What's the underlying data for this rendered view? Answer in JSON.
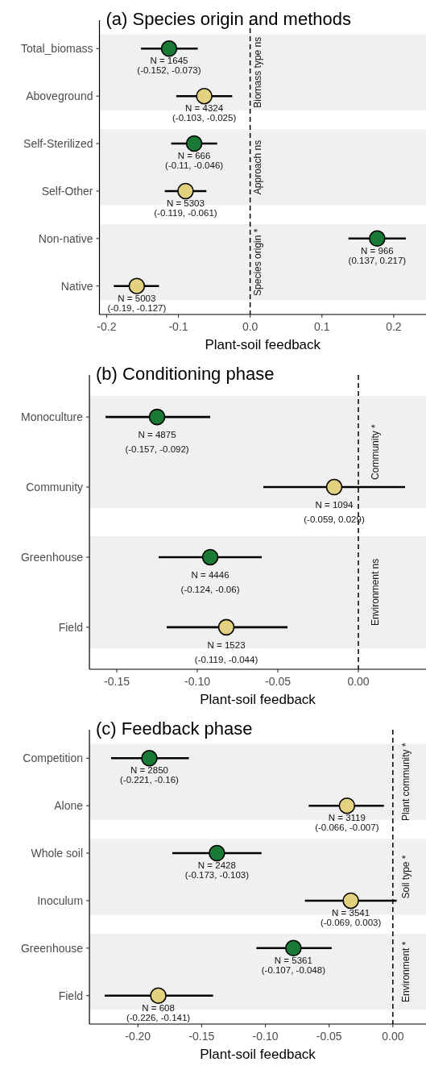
{
  "chart_data": [
    {
      "type": "scatter",
      "orientation": "horizontal",
      "title": "(a) Species origin and methods",
      "xlabel": "Plant-soil feedback",
      "marker": "circle",
      "categories": [
        "Total_biomass",
        "Aboveground",
        "Self-Sterilized",
        "Self-Other",
        "Non-native",
        "Native"
      ],
      "values": [
        -0.113,
        -0.064,
        -0.078,
        -0.09,
        0.177,
        -0.158
      ],
      "errors": [
        [
          -0.152,
          -0.073
        ],
        [
          -0.103,
          -0.025
        ],
        [
          -0.11,
          -0.046
        ],
        [
          -0.119,
          -0.061
        ],
        [
          0.137,
          0.217
        ],
        [
          -0.19,
          -0.127
        ]
      ],
      "colors": [
        "#187a34",
        "#e3d17f",
        "#187a34",
        "#e3d17f",
        "#187a34",
        "#e3d17f"
      ],
      "value_labels": [
        "N = 1645\n(-0.152, -0.073)",
        "N = 4324\n(-0.103, -0.025)",
        "N = 666\n(-0.11, -0.046)",
        "N = 5303\n(-0.119, -0.061)",
        "N = 966\n(0.137, 0.217)",
        "N = 5003\n(-0.19, -0.127)"
      ],
      "xlim": [
        -0.21,
        0.245
      ],
      "xticks": [
        -0.2,
        -0.1,
        {
          "value": 0,
          "label": "0.0"
        },
        0.1,
        0.2
      ],
      "ref_lines": [
        {
          "axis": "x",
          "value": 0,
          "line_style": "dashed",
          "color": "#000000"
        }
      ],
      "bands": [
        {
          "axis": "y",
          "from": "Total_biomass",
          "to": "Aboveground",
          "label": "Biomass type ns",
          "color": "#f0f0f0"
        },
        {
          "axis": "y",
          "from": "Self-Sterilized",
          "to": "Self-Other",
          "label": "Approach ns",
          "color": "#f0f0f0"
        },
        {
          "axis": "y",
          "from": "Non-native",
          "to": "Native",
          "label": "Species origin *",
          "color": "#f0f0f0"
        }
      ]
    },
    {
      "type": "scatter",
      "orientation": "horizontal",
      "title": "(b) Conditioning phase",
      "xlabel": "Plant-soil feedback",
      "marker": "circle",
      "categories": [
        "Monoculture",
        "Community",
        "Greenhouse",
        "Field"
      ],
      "values": [
        -0.125,
        -0.015,
        -0.092,
        -0.082
      ],
      "errors": [
        [
          -0.157,
          -0.092
        ],
        [
          -0.059,
          0.029
        ],
        [
          -0.124,
          -0.06
        ],
        [
          -0.119,
          -0.044
        ]
      ],
      "colors": [
        "#187a34",
        "#e3d17f",
        "#187a34",
        "#e3d17f"
      ],
      "value_labels": [
        "N = 4875\n(-0.157, -0.092)",
        "N = 1094\n(-0.059, 0.029)",
        "N = 4446\n(-0.124, -0.06)",
        "N = 1523\n(-0.119, -0.044)"
      ],
      "xlim": [
        -0.167,
        0.042
      ],
      "xticks": [
        -0.15,
        {
          "value": -0.1,
          "label": "-0.10"
        },
        -0.05,
        {
          "value": 0,
          "label": "0.00"
        }
      ],
      "ref_lines": [
        {
          "axis": "x",
          "value": 0,
          "line_style": "dashed",
          "color": "#000000"
        }
      ],
      "bands": [
        {
          "axis": "y",
          "from": "Monoculture",
          "to": "Community",
          "label": "Community *",
          "color": "#f0f0f0"
        },
        {
          "axis": "y",
          "from": "Greenhouse",
          "to": "Field",
          "label": "Environment ns",
          "color": "#f0f0f0"
        }
      ]
    },
    {
      "type": "scatter",
      "orientation": "horizontal",
      "title": "(c) Feedback phase",
      "xlabel": "Plant-soil feedback",
      "marker": "circle",
      "categories": [
        "Competition",
        "Alone",
        "Whole soil",
        "Inoculum",
        "Greenhouse",
        "Field"
      ],
      "values": [
        -0.191,
        -0.036,
        -0.138,
        -0.033,
        -0.078,
        -0.184
      ],
      "errors": [
        [
          -0.221,
          -0.16
        ],
        [
          -0.066,
          -0.007
        ],
        [
          -0.173,
          -0.103
        ],
        [
          -0.069,
          0.003
        ],
        [
          -0.107,
          -0.048
        ],
        [
          -0.226,
          -0.141
        ]
      ],
      "colors": [
        "#187a34",
        "#e3d17f",
        "#187a34",
        "#e3d17f",
        "#187a34",
        "#e3d17f"
      ],
      "value_labels": [
        "N = 2850\n(-0.221, -0.16)",
        "N = 3119\n(-0.066, -0.007)",
        "N = 2428\n(-0.173, -0.103)",
        "N = 3541\n(-0.069, 0.003)",
        "N = 5361\n(-0.107, -0.048)",
        "N = 608\n(-0.226, -0.141)"
      ],
      "xlim": [
        -0.238,
        0.026
      ],
      "xticks": [
        {
          "value": -0.2,
          "label": "-0.20"
        },
        -0.15,
        {
          "value": -0.1,
          "label": "-0.10"
        },
        -0.05,
        {
          "value": 0,
          "label": "0.00"
        }
      ],
      "ref_lines": [
        {
          "axis": "x",
          "value": 0,
          "line_style": "dashed",
          "color": "#000000"
        }
      ],
      "bands": [
        {
          "axis": "y",
          "from": "Competition",
          "to": "Alone",
          "label": "Plant community *",
          "color": "#f0f0f0"
        },
        {
          "axis": "y",
          "from": "Whole soil",
          "to": "Inoculum",
          "label": "Soil type *",
          "color": "#f0f0f0"
        },
        {
          "axis": "y",
          "from": "Greenhouse",
          "to": "Field",
          "label": "Environment *",
          "color": "#f0f0f0"
        }
      ]
    }
  ]
}
